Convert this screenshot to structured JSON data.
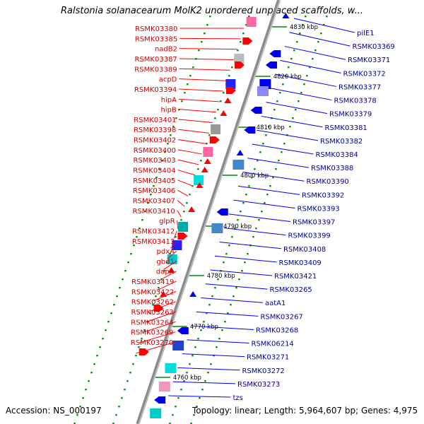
{
  "title": "Ralstonia solanacearum MolK2 unordered unplaced scaffolds, w...",
  "footer": {
    "accession": "Accession: NS_000197",
    "stats": "Topology: linear; Length: 5,964,607 bp; Genes: 4,975"
  },
  "colors": {
    "left_labels": "#cc0000",
    "right_labels": "#000099",
    "left_genes": "#ff0000",
    "right_genes": "#0000ee",
    "axis": "#888888",
    "dots": "#008800"
  },
  "ticks": [
    "4830 kbp",
    "4820 kbp",
    "4810 kbp",
    "4800 kbp",
    "4790 kbp",
    "4780 kbp",
    "4770 kbp",
    "4760 kbp"
  ],
  "left_labels": [
    "RSMK03380",
    "RSMK03385",
    "nadB2",
    "RSMK03387",
    "RSMK03389",
    "acpD",
    "RSMK03394",
    "hipA",
    "hipB",
    "RSMK03401",
    "RSMK03398",
    "RSMK03402",
    "RSMK03400",
    "RSMK03403",
    "RSMK03404",
    "RSMK03405",
    "RSMK03406",
    "RSMK03407",
    "RSMK03410",
    "glpR",
    "RSMK03412",
    "RSMK03413",
    "pdxA",
    "gbd1",
    "dapA",
    "RSMK03419",
    "RSMK03422",
    "RSMK03262",
    "RSMK03263",
    "RSMK03264",
    "RSMK03269",
    "RSMK03270"
  ],
  "right_labels": [
    "pilE1",
    "RSMK03369",
    "RSMK03371",
    "RSMK03372",
    "RSMK03377",
    "RSMK03378",
    "RSMK03379",
    "RSMK03381",
    "RSMK03382",
    "RSMK03384",
    "RSMK03388",
    "RSMK03390",
    "RSMK03392",
    "RSMK03393",
    "RSMK03397",
    "RSMK03399",
    "RSMK03408",
    "RSMK03409",
    "RSMK03421",
    "RSMK03265",
    "aatA1",
    "RSMK03267",
    "RSMK03268",
    "RSMK06214",
    "RSMK03271",
    "RSMK03272",
    "RSMK03273",
    "tzs"
  ]
}
